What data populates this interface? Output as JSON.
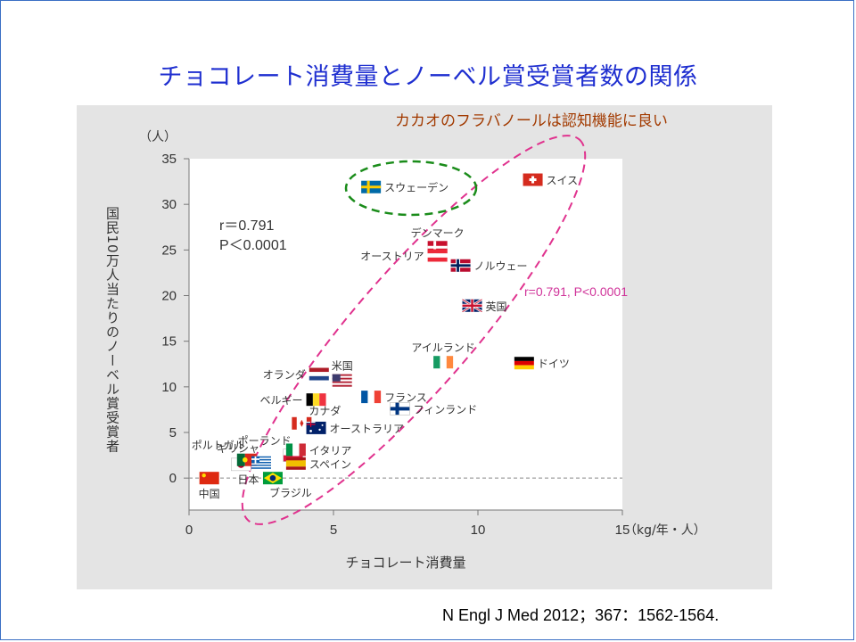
{
  "slide": {
    "title": "チョコレート消費量とノーベル賞受賞者数の関係",
    "citation": "N Engl J Med 2012；367：1562-1564."
  },
  "annotations": {
    "cacao_note": "カカオのフラバノールは認知機能に良い",
    "corr_inline": "r=0.791, P<0.0001",
    "stats_r": "r＝0.791",
    "stats_p": "P＜0.0001"
  },
  "colors": {
    "title": "#1f2fd0",
    "cacao_note": "#a23a00",
    "ellipse_pink": "#e0328e",
    "ellipse_green": "#1a8c1a",
    "corr_inline": "#d0349a"
  },
  "chart_data": {
    "type": "scatter",
    "xlabel": "チョコレート消費量",
    "xunit": "（kg/年・人）",
    "ylabel": "国民10万人当たりのノーベル賞受賞者",
    "yunit": "（人）",
    "xlim": [
      0,
      15
    ],
    "ylim": [
      -3.5,
      35
    ],
    "xticks": [
      0,
      5,
      10,
      15
    ],
    "yticks": [
      0,
      5,
      10,
      15,
      20,
      25,
      30,
      35
    ],
    "reference_line_y": 0,
    "points": [
      {
        "name": "中国",
        "x": 0.7,
        "y": 0.0,
        "flag": "china"
      },
      {
        "name": "日本",
        "x": 1.8,
        "y": 1.5,
        "flag": "japan"
      },
      {
        "name": "ブラジル",
        "x": 2.9,
        "y": 0.0,
        "flag": "brazil"
      },
      {
        "name": "ポルトガル",
        "x": 2.0,
        "y": 2.0,
        "flag": "portugal"
      },
      {
        "name": "ギリシャ",
        "x": 2.5,
        "y": 1.7,
        "flag": "greece"
      },
      {
        "name": "ポーランド",
        "x": 3.6,
        "y": 2.5,
        "flag": "poland"
      },
      {
        "name": "スペイン",
        "x": 3.7,
        "y": 1.6,
        "flag": "spain"
      },
      {
        "name": "イタリア",
        "x": 3.7,
        "y": 3.1,
        "flag": "italy"
      },
      {
        "name": "カナダ",
        "x": 3.9,
        "y": 6.0,
        "flag": "canada"
      },
      {
        "name": "オーストラリア",
        "x": 4.4,
        "y": 5.5,
        "flag": "australia"
      },
      {
        "name": "ベルギー",
        "x": 4.4,
        "y": 8.6,
        "flag": "belgium"
      },
      {
        "name": "オランダ",
        "x": 4.5,
        "y": 11.4,
        "flag": "netherlands"
      },
      {
        "name": "米国",
        "x": 5.3,
        "y": 10.7,
        "flag": "usa"
      },
      {
        "name": "フランス",
        "x": 6.3,
        "y": 8.9,
        "flag": "france"
      },
      {
        "name": "フィンランド",
        "x": 7.3,
        "y": 7.6,
        "flag": "finland"
      },
      {
        "name": "アイルランド",
        "x": 8.8,
        "y": 12.7,
        "flag": "ireland"
      },
      {
        "name": "スウェーデン",
        "x": 6.3,
        "y": 31.9,
        "flag": "sweden"
      },
      {
        "name": "スイス",
        "x": 11.9,
        "y": 32.7,
        "flag": "switzerland"
      },
      {
        "name": "デンマーク",
        "x": 8.6,
        "y": 25.3,
        "flag": "denmark"
      },
      {
        "name": "オーストリア",
        "x": 8.6,
        "y": 24.4,
        "flag": "austria"
      },
      {
        "name": "ノルウェー",
        "x": 9.4,
        "y": 23.3,
        "flag": "norway"
      },
      {
        "name": "英国",
        "x": 9.8,
        "y": 18.9,
        "flag": "uk"
      },
      {
        "name": "ドイツ",
        "x": 11.6,
        "y": 12.6,
        "flag": "germany"
      }
    ]
  }
}
